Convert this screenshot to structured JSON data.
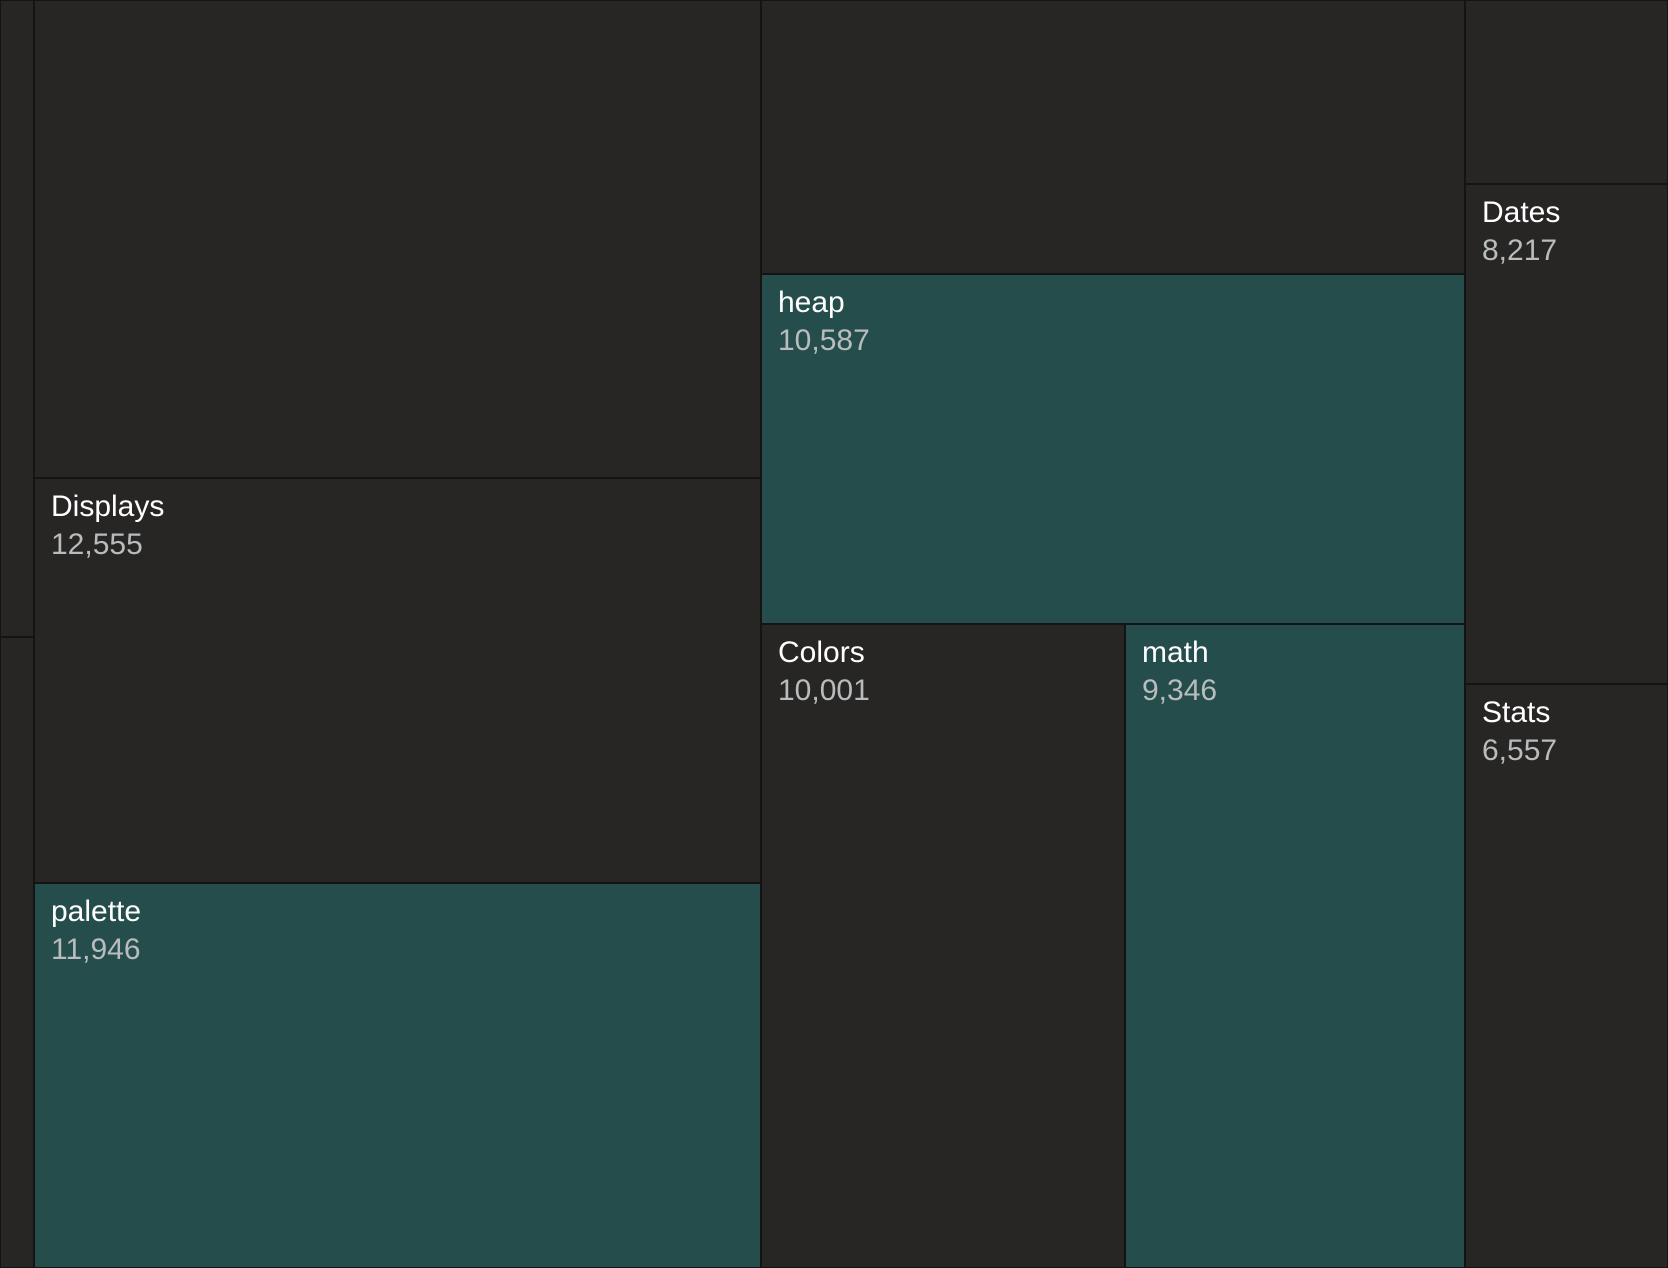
{
  "chart_data": {
    "type": "treemap",
    "colors": {
      "background": "#1c1a1a",
      "dark_tile": "#282525",
      "teal_tile": "#254d4c",
      "label": "#ffffff",
      "value": "#b9bcbc"
    },
    "cells": [
      {
        "id": "displays",
        "label": "Displays",
        "value": 12555,
        "display": "12,555",
        "color": "dark"
      },
      {
        "id": "palette",
        "label": "palette",
        "value": 11946,
        "display": "11,946",
        "color": "teal"
      },
      {
        "id": "heap",
        "label": "heap",
        "value": 10587,
        "display": "10,587",
        "color": "teal"
      },
      {
        "id": "colors",
        "label": "Colors",
        "value": 10001,
        "display": "10,001",
        "color": "dark"
      },
      {
        "id": "math",
        "label": "math",
        "value": 9346,
        "display": "9,346",
        "color": "teal"
      },
      {
        "id": "dates",
        "label": "Dates",
        "value": 8217,
        "display": "8,217",
        "color": "dark"
      },
      {
        "id": "stats",
        "label": "Stats",
        "value": 6557,
        "display": "6,557",
        "color": "dark"
      }
    ],
    "unlabeled_tiles": 4
  }
}
